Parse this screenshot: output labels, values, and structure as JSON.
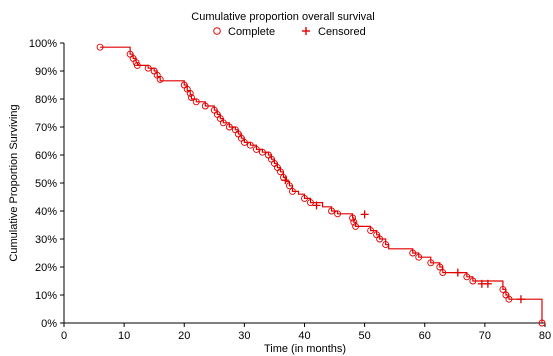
{
  "chart_data": {
    "type": "line",
    "subtype": "kaplan-meier survival step curve",
    "title": "Cumulative proportion overall survival",
    "xlabel": "Time (in months)",
    "ylabel": "Cumulative Proportion Surviving",
    "xlim": [
      0,
      80
    ],
    "ylim": [
      0,
      1
    ],
    "x_ticks": [
      "0",
      "10",
      "20",
      "30",
      "40",
      "50",
      "60",
      "70",
      "80"
    ],
    "y_ticks": [
      "0%",
      "10%",
      "20%",
      "30%",
      "40%",
      "50%",
      "60%",
      "70%",
      "80%",
      "90%",
      "100%"
    ],
    "grid": false,
    "legend": {
      "position": "top-center",
      "entries": [
        "Complete",
        "Censored"
      ]
    },
    "colors": {
      "series": "#e00000"
    },
    "series": [
      {
        "name": "Complete",
        "marker": "open-circle",
        "step_curve": [
          [
            6,
            0.985
          ],
          [
            11,
            0.96
          ],
          [
            11.5,
            0.945
          ],
          [
            12,
            0.93
          ],
          [
            12.2,
            0.92
          ],
          [
            14,
            0.91
          ],
          [
            15,
            0.9
          ],
          [
            15.5,
            0.88
          ],
          [
            16,
            0.865
          ],
          [
            20,
            0.85
          ],
          [
            20.5,
            0.83
          ],
          [
            21,
            0.815
          ],
          [
            21.2,
            0.8
          ],
          [
            22,
            0.79
          ],
          [
            23.5,
            0.775
          ],
          [
            25,
            0.76
          ],
          [
            25.5,
            0.745
          ],
          [
            26,
            0.73
          ],
          [
            26.5,
            0.715
          ],
          [
            27.5,
            0.7
          ],
          [
            28.5,
            0.69
          ],
          [
            29,
            0.675
          ],
          [
            29.5,
            0.66
          ],
          [
            30,
            0.645
          ],
          [
            31,
            0.635
          ],
          [
            32,
            0.62
          ],
          [
            33,
            0.61
          ],
          [
            34,
            0.6
          ],
          [
            34.5,
            0.585
          ],
          [
            35,
            0.57
          ],
          [
            35.5,
            0.555
          ],
          [
            36,
            0.54
          ],
          [
            36.5,
            0.52
          ],
          [
            37,
            0.505
          ],
          [
            37.5,
            0.49
          ],
          [
            38,
            0.47
          ],
          [
            39,
            0.46
          ],
          [
            40,
            0.445
          ],
          [
            41,
            0.43
          ],
          [
            43,
            0.415
          ],
          [
            44.5,
            0.4
          ],
          [
            45.5,
            0.39
          ],
          [
            48,
            0.375
          ],
          [
            48.2,
            0.36
          ],
          [
            48.5,
            0.345
          ],
          [
            51,
            0.33
          ],
          [
            52,
            0.315
          ],
          [
            52.5,
            0.3
          ],
          [
            53.5,
            0.28
          ],
          [
            54,
            0.265
          ],
          [
            58,
            0.25
          ],
          [
            59,
            0.235
          ],
          [
            61,
            0.215
          ],
          [
            62.5,
            0.2
          ],
          [
            63,
            0.18
          ],
          [
            67,
            0.165
          ],
          [
            68,
            0.15
          ],
          [
            73,
            0.12
          ],
          [
            73.5,
            0.1
          ],
          [
            74,
            0.085
          ],
          [
            79.5,
            0
          ]
        ],
        "complete_events": [
          [
            6,
            0.985
          ],
          [
            11,
            0.96
          ],
          [
            11.5,
            0.945
          ],
          [
            12,
            0.93
          ],
          [
            12.2,
            0.92
          ],
          [
            14,
            0.91
          ],
          [
            15,
            0.9
          ],
          [
            15.5,
            0.885
          ],
          [
            16,
            0.87
          ],
          [
            20,
            0.85
          ],
          [
            20.5,
            0.835
          ],
          [
            21,
            0.82
          ],
          [
            21.2,
            0.805
          ],
          [
            22,
            0.79
          ],
          [
            23.5,
            0.775
          ],
          [
            25,
            0.76
          ],
          [
            25.5,
            0.745
          ],
          [
            26,
            0.73
          ],
          [
            26.5,
            0.715
          ],
          [
            27.5,
            0.7
          ],
          [
            28.5,
            0.69
          ],
          [
            29,
            0.675
          ],
          [
            29.5,
            0.66
          ],
          [
            30,
            0.645
          ],
          [
            31,
            0.635
          ],
          [
            32,
            0.62
          ],
          [
            33,
            0.61
          ],
          [
            34,
            0.6
          ],
          [
            34.5,
            0.585
          ],
          [
            35,
            0.57
          ],
          [
            35.5,
            0.555
          ],
          [
            36,
            0.54
          ],
          [
            36.5,
            0.52
          ],
          [
            37.5,
            0.49
          ],
          [
            38,
            0.47
          ],
          [
            40,
            0.445
          ],
          [
            41,
            0.43
          ],
          [
            44.5,
            0.4
          ],
          [
            45.5,
            0.39
          ],
          [
            48,
            0.375
          ],
          [
            48.2,
            0.36
          ],
          [
            48.5,
            0.345
          ],
          [
            51,
            0.33
          ],
          [
            52,
            0.315
          ],
          [
            52.5,
            0.3
          ],
          [
            53.5,
            0.28
          ],
          [
            58,
            0.25
          ],
          [
            59,
            0.235
          ],
          [
            61,
            0.215
          ],
          [
            62.5,
            0.2
          ],
          [
            63,
            0.18
          ],
          [
            67,
            0.165
          ],
          [
            68,
            0.15
          ],
          [
            73,
            0.12
          ],
          [
            73.5,
            0.1
          ],
          [
            74,
            0.085
          ],
          [
            79.5,
            0
          ]
        ]
      },
      {
        "name": "Censored",
        "marker": "plus",
        "points": [
          [
            36.8,
            0.51
          ],
          [
            42,
            0.42
          ],
          [
            50,
            0.388
          ],
          [
            65.5,
            0.18
          ],
          [
            69.5,
            0.14
          ],
          [
            70.5,
            0.14
          ],
          [
            76,
            0.085
          ]
        ]
      }
    ]
  }
}
